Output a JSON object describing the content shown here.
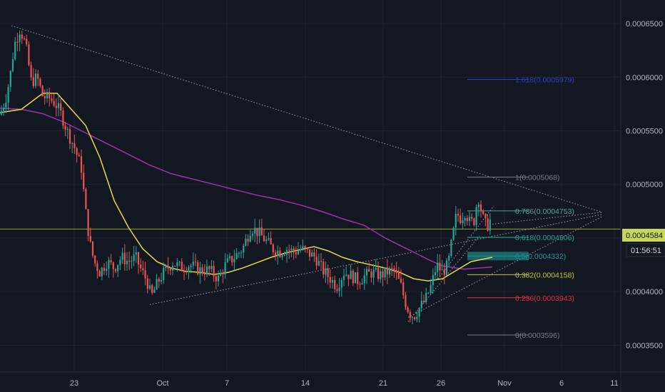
{
  "colors": {
    "background": "#131722",
    "grid": "#1f2230",
    "up": "#26a69a",
    "down": "#ef5350",
    "ma_fast": "#e6d94a",
    "ma_slow": "#a030b0",
    "trendline": "#9aa0ad",
    "current_line": "#9aa335",
    "current_tag": "#c8d65a"
  },
  "chart_data": {
    "type": "candlestick",
    "title": "",
    "xlabel": "",
    "ylabel": "",
    "x_ticks": [
      "23",
      "Oct",
      "7",
      "14",
      "21",
      "26",
      "Nov",
      "6",
      "11"
    ],
    "y_ticks": [
      "0.0003500",
      "0.0004000",
      "0.0004500",
      "0.0005000",
      "0.0005500",
      "0.0006000",
      "0.0006500"
    ],
    "ylim": [
      0.000325,
      0.000672
    ],
    "current_price": "0.0004584",
    "countdown": "01:56:51",
    "grid": true,
    "price_path": [
      [
        0,
        0.000565
      ],
      [
        8,
        0.00058
      ],
      [
        14,
        0.0006
      ],
      [
        20,
        0.00063
      ],
      [
        28,
        0.000645
      ],
      [
        36,
        0.00063
      ],
      [
        44,
        0.000595
      ],
      [
        52,
        0.0006
      ],
      [
        60,
        0.000582
      ],
      [
        70,
        0.00058
      ],
      [
        78,
        0.000575
      ],
      [
        86,
        0.000565
      ],
      [
        94,
        0.00055
      ],
      [
        104,
        0.000535
      ],
      [
        114,
        0.000515
      ],
      [
        120,
        0.000475
      ],
      [
        126,
        0.000445
      ],
      [
        132,
        0.000428
      ],
      [
        140,
        0.000418
      ],
      [
        150,
        0.000428
      ],
      [
        160,
        0.000422
      ],
      [
        170,
        0.000432
      ],
      [
        180,
        0.000428
      ],
      [
        190,
        0.000432
      ],
      [
        198,
        0.00042
      ],
      [
        206,
        0.00041
      ],
      [
        212,
        0.000395
      ],
      [
        222,
        0.00041
      ],
      [
        232,
        0.00042
      ],
      [
        242,
        0.000427
      ],
      [
        254,
        0.000422
      ],
      [
        266,
        0.000425
      ],
      [
        280,
        0.00042
      ],
      [
        294,
        0.00042
      ],
      [
        306,
        0.000412
      ],
      [
        316,
        0.000425
      ],
      [
        328,
        0.000432
      ],
      [
        340,
        0.00044
      ],
      [
        352,
        0.00046
      ],
      [
        362,
        0.000455
      ],
      [
        372,
        0.000448
      ],
      [
        382,
        0.00044
      ],
      [
        392,
        0.000437
      ],
      [
        402,
        0.00044
      ],
      [
        412,
        0.000437
      ],
      [
        422,
        0.00044
      ],
      [
        432,
        0.000436
      ],
      [
        442,
        0.000432
      ],
      [
        452,
        0.00042
      ],
      [
        462,
        0.000413
      ],
      [
        472,
        0.000405
      ],
      [
        482,
        0.000418
      ],
      [
        492,
        0.000415
      ],
      [
        502,
        0.00041
      ],
      [
        512,
        0.000415
      ],
      [
        522,
        0.000418
      ],
      [
        532,
        0.000415
      ],
      [
        542,
        0.000418
      ],
      [
        552,
        0.00042
      ],
      [
        562,
        0.000405
      ],
      [
        568,
        0.00039
      ],
      [
        574,
        0.00038
      ],
      [
        580,
        0.000377
      ],
      [
        588,
        0.000385
      ],
      [
        596,
        0.000392
      ],
      [
        604,
        0.000405
      ],
      [
        612,
        0.000425
      ],
      [
        620,
        0.000418
      ],
      [
        628,
        0.000425
      ],
      [
        634,
        0.00045
      ],
      [
        640,
        0.000473
      ],
      [
        646,
        0.000468
      ],
      [
        652,
        0.000475
      ],
      [
        658,
        0.000465
      ],
      [
        664,
        0.000465
      ],
      [
        670,
        0.00049
      ],
      [
        676,
        0.00047
      ],
      [
        682,
        0.00046
      ],
      [
        688,
        0.000468
      ]
    ],
    "ma_fast": [
      [
        0,
        0.000567
      ],
      [
        30,
        0.00057
      ],
      [
        60,
        0.000585
      ],
      [
        80,
        0.000585
      ],
      [
        100,
        0.00057
      ],
      [
        120,
        0.000555
      ],
      [
        140,
        0.000525
      ],
      [
        160,
        0.000485
      ],
      [
        180,
        0.00046
      ],
      [
        200,
        0.00044
      ],
      [
        220,
        0.000428
      ],
      [
        240,
        0.000422
      ],
      [
        260,
        0.000419
      ],
      [
        280,
        0.000418
      ],
      [
        300,
        0.000416
      ],
      [
        320,
        0.000418
      ],
      [
        340,
        0.000422
      ],
      [
        360,
        0.000427
      ],
      [
        380,
        0.000432
      ],
      [
        400,
        0.000436
      ],
      [
        420,
        0.000439
      ],
      [
        440,
        0.000442
      ],
      [
        460,
        0.000438
      ],
      [
        480,
        0.000432
      ],
      [
        500,
        0.000428
      ],
      [
        520,
        0.000425
      ],
      [
        540,
        0.000422
      ],
      [
        560,
        0.000418
      ],
      [
        580,
        0.000412
      ],
      [
        600,
        0.00041
      ],
      [
        620,
        0.000412
      ],
      [
        640,
        0.00042
      ],
      [
        660,
        0.000428
      ],
      [
        690,
        0.000432
      ]
    ],
    "ma_slow": [
      [
        0,
        0.000571
      ],
      [
        30,
        0.00057
      ],
      [
        60,
        0.000566
      ],
      [
        90,
        0.000558
      ],
      [
        120,
        0.000548
      ],
      [
        150,
        0.000538
      ],
      [
        180,
        0.000528
      ],
      [
        210,
        0.000518
      ],
      [
        240,
        0.00051
      ],
      [
        270,
        0.000505
      ],
      [
        300,
        0.0005
      ],
      [
        330,
        0.000495
      ],
      [
        360,
        0.00049
      ],
      [
        390,
        0.000486
      ],
      [
        420,
        0.000481
      ],
      [
        450,
        0.000475
      ],
      [
        480,
        0.000468
      ],
      [
        510,
        0.000462
      ],
      [
        540,
        0.00045
      ],
      [
        570,
        0.00044
      ],
      [
        600,
        0.00043
      ],
      [
        620,
        0.000424
      ],
      [
        650,
        0.000421
      ],
      [
        690,
        0.000423
      ]
    ],
    "fibonacci": {
      "levels": [
        {
          "label": "1.618(0.0005979)",
          "value": 0.0005979,
          "color": "#3040c0"
        },
        {
          "label": "1(0.0005068)",
          "value": 0.0005068,
          "color": "#787b86"
        },
        {
          "label": "0.786(0.0004753)",
          "value": 0.0004753,
          "color": "#4ca79a"
        },
        {
          "label": "0.618(0.0004506)",
          "value": 0.0004506,
          "color": "#26a69a"
        },
        {
          "label": "0.5(0.0004332)",
          "value": 0.0004332,
          "color": "#2196a0"
        },
        {
          "label": "0.382(0.0004158)",
          "value": 0.0004158,
          "color": "#c8c43a"
        },
        {
          "label": "0.236(0.0003943)",
          "value": 0.0003943,
          "color": "#e8313f"
        },
        {
          "label": "0(0.0003596)",
          "value": 0.0003596,
          "color": "#787b86"
        }
      ]
    }
  }
}
